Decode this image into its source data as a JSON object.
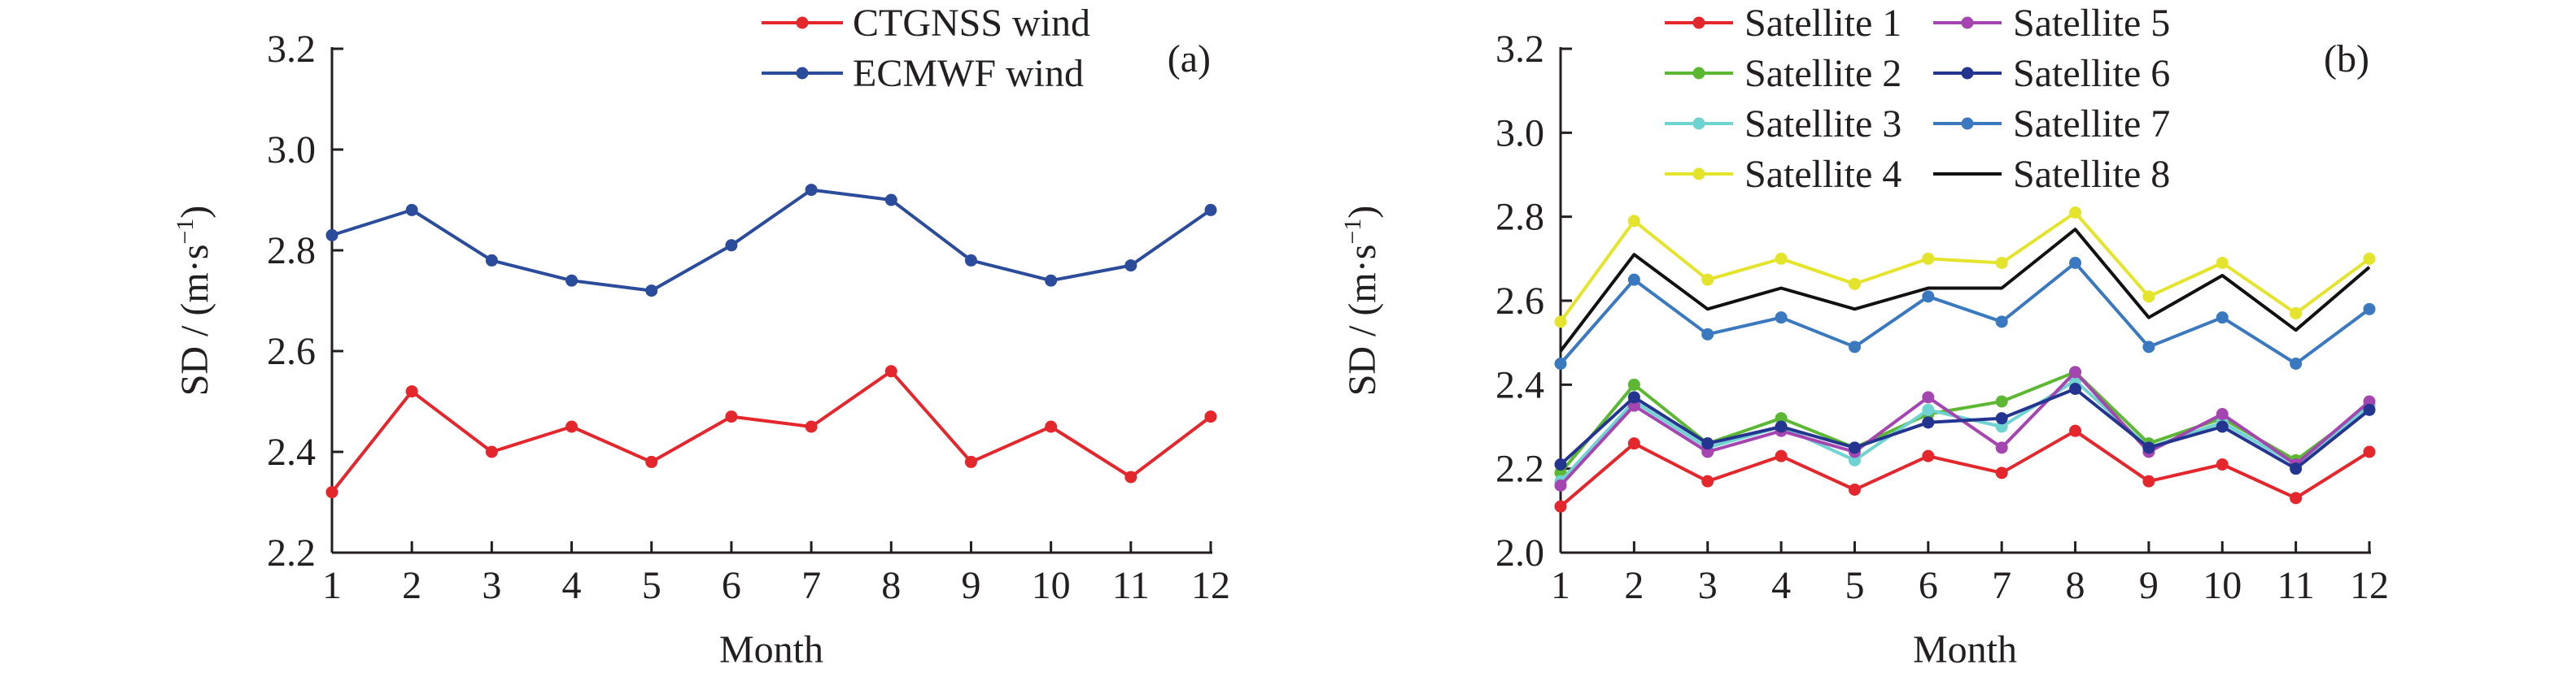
{
  "chart_data": [
    {
      "type": "line",
      "panel_label": "(a)",
      "title": "",
      "xlabel": "Month",
      "ylabel": "SD / (m·s⁻¹)",
      "ylabel_main": "SD / (m·s",
      "ylabel_sup": "−1",
      "ylabel_close": ")",
      "x": [
        1,
        2,
        3,
        4,
        5,
        6,
        7,
        8,
        9,
        10,
        11,
        12
      ],
      "xticks": [
        "1",
        "2",
        "3",
        "4",
        "5",
        "6",
        "7",
        "8",
        "9",
        "10",
        "11",
        "12"
      ],
      "ylim": [
        2.2,
        3.2
      ],
      "yticks": [
        "2.2",
        "2.4",
        "2.6",
        "2.8",
        "3.0",
        "3.2"
      ],
      "grid": false,
      "legend_position": "top-right",
      "series": [
        {
          "name": "CTGNSS wind",
          "color": "#e3272d",
          "markers": true,
          "values": [
            2.32,
            2.52,
            2.4,
            2.45,
            2.38,
            2.47,
            2.45,
            2.56,
            2.38,
            2.45,
            2.35,
            2.47
          ]
        },
        {
          "name": "ECMWF wind",
          "color": "#2b4b9b",
          "markers": true,
          "values": [
            2.83,
            2.88,
            2.78,
            2.74,
            2.72,
            2.81,
            2.92,
            2.9,
            2.78,
            2.74,
            2.77,
            2.88
          ]
        }
      ]
    },
    {
      "type": "line",
      "panel_label": "(b)",
      "title": "",
      "xlabel": "Month",
      "ylabel": "SD / (m·s⁻¹)",
      "ylabel_main": "SD / (m·s",
      "ylabel_sup": "−1",
      "ylabel_close": ")",
      "x": [
        1,
        2,
        3,
        4,
        5,
        6,
        7,
        8,
        9,
        10,
        11,
        12
      ],
      "xticks": [
        "1",
        "2",
        "3",
        "4",
        "5",
        "6",
        "7",
        "8",
        "9",
        "10",
        "11",
        "12"
      ],
      "ylim": [
        2.0,
        3.2
      ],
      "yticks": [
        "2.0",
        "2.2",
        "2.4",
        "2.6",
        "2.8",
        "3.0",
        "3.2"
      ],
      "grid": false,
      "legend_position": "top",
      "series": [
        {
          "name": "Satellite 1",
          "color": "#e3272d",
          "markers": true,
          "values": [
            2.11,
            2.26,
            2.17,
            2.23,
            2.15,
            2.23,
            2.19,
            2.29,
            2.17,
            2.21,
            2.13,
            2.24
          ]
        },
        {
          "name": "Satellite 2",
          "color": "#5cb833",
          "markers": true,
          "values": [
            2.19,
            2.4,
            2.26,
            2.32,
            2.25,
            2.33,
            2.36,
            2.43,
            2.26,
            2.32,
            2.22,
            2.35
          ]
        },
        {
          "name": "Satellite 3",
          "color": "#6fd3d1",
          "markers": true,
          "values": [
            2.17,
            2.36,
            2.25,
            2.3,
            2.22,
            2.34,
            2.3,
            2.41,
            2.25,
            2.31,
            2.21,
            2.35
          ]
        },
        {
          "name": "Satellite 4",
          "color": "#e4e42c",
          "markers": true,
          "values": [
            2.55,
            2.79,
            2.65,
            2.7,
            2.64,
            2.7,
            2.69,
            2.81,
            2.61,
            2.69,
            2.57,
            2.7
          ]
        },
        {
          "name": "Satellite 5",
          "color": "#a545b0",
          "markers": true,
          "values": [
            2.16,
            2.35,
            2.24,
            2.29,
            2.24,
            2.37,
            2.25,
            2.43,
            2.24,
            2.33,
            2.21,
            2.36
          ]
        },
        {
          "name": "Satellite 6",
          "color": "#24358f",
          "markers": true,
          "values": [
            2.21,
            2.37,
            2.26,
            2.3,
            2.25,
            2.31,
            2.32,
            2.39,
            2.25,
            2.3,
            2.2,
            2.34
          ]
        },
        {
          "name": "Satellite 7",
          "color": "#3a78bf",
          "markers": true,
          "values": [
            2.45,
            2.65,
            2.52,
            2.56,
            2.49,
            2.61,
            2.55,
            2.69,
            2.49,
            2.56,
            2.45,
            2.58
          ]
        },
        {
          "name": "Satellite 8",
          "color": "#111111",
          "markers": false,
          "values": [
            2.48,
            2.71,
            2.58,
            2.63,
            2.58,
            2.63,
            2.63,
            2.77,
            2.56,
            2.66,
            2.53,
            2.68
          ]
        }
      ]
    }
  ]
}
